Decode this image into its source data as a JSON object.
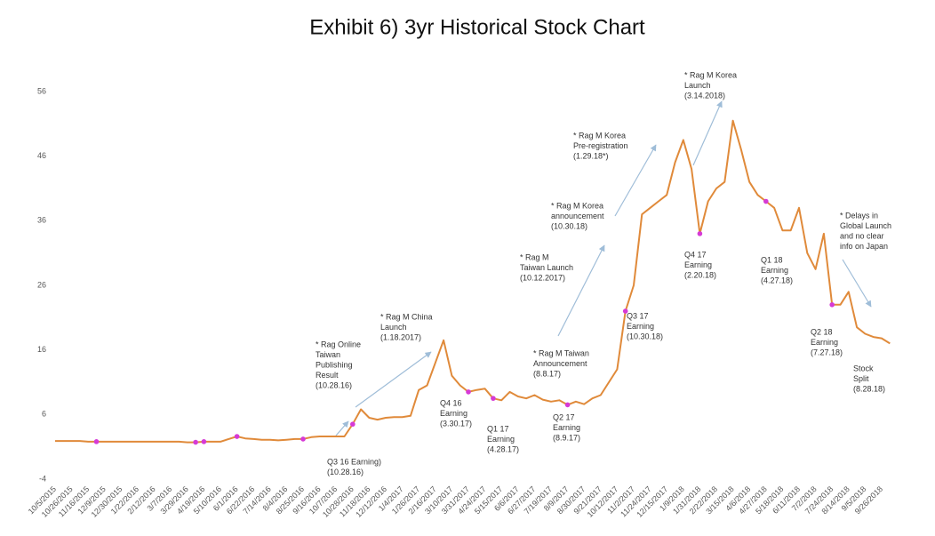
{
  "chart_data": {
    "type": "line",
    "title": "Exhibit 6) 3yr Historical Stock Chart",
    "color": "#e08a3a",
    "categories": [
      "10/5/2015",
      null,
      "10/26/2015",
      null,
      "11/16/2015",
      null,
      "12/9/2015",
      null,
      "12/30/2015",
      null,
      "1/22/2016",
      null,
      "2/12/2016",
      null,
      "3/7/2016",
      null,
      "3/29/2016",
      null,
      "4/19/2016",
      null,
      "5/10/2016",
      null,
      "6/1/2016",
      null,
      "6/22/2016",
      null,
      "7/14/2016",
      null,
      "8/4/2016",
      null,
      "8/25/2016",
      null,
      "9/16/2016",
      null,
      "10/7/2016",
      null,
      "10/28/2016",
      null,
      "11/18/2016",
      null,
      "12/12/2016",
      null,
      "1/4/2017",
      null,
      "1/26/2017",
      null,
      "2/16/2017",
      null,
      "3/10/2017",
      null,
      "3/31/2017",
      null,
      "4/24/2017",
      null,
      "5/15/2017",
      null,
      "6/6/2017",
      null,
      "6/27/2017",
      null,
      "7/19/2017",
      null,
      "8/9/2017",
      null,
      "8/30/2017",
      null,
      "9/21/2017",
      null,
      "10/12/2017",
      null,
      "11/2/2017",
      null,
      "11/24/2017",
      null,
      "12/15/2017",
      null,
      "1/9/2018",
      null,
      "1/31/2018",
      null,
      "2/22/2018",
      null,
      "3/15/2018",
      null,
      "4/6/2018",
      null,
      "4/27/2018",
      null,
      "5/18/2018",
      null,
      "6/11/2018",
      null,
      "7/2/2018",
      null,
      "7/24/2018",
      null,
      "8/14/2018",
      null,
      "9/5/2018",
      null,
      "9/26/2018",
      null
    ],
    "values": [
      1.9,
      1.9,
      1.9,
      1.9,
      1.8,
      1.8,
      1.8,
      1.8,
      1.8,
      1.8,
      1.8,
      1.8,
      1.8,
      1.8,
      1.8,
      1.8,
      1.7,
      1.7,
      1.8,
      1.8,
      1.8,
      2.2,
      2.6,
      2.3,
      2.2,
      2.1,
      2.1,
      2.0,
      2.1,
      2.2,
      2.2,
      2.5,
      2.6,
      2.6,
      2.6,
      2.6,
      4.5,
      6.8,
      5.5,
      5.2,
      5.5,
      5.6,
      5.6,
      5.8,
      9.8,
      10.5,
      14,
      17.5,
      12,
      10.5,
      9.5,
      9.8,
      10,
      8.5,
      8.2,
      9.5,
      8.8,
      8.5,
      9.0,
      8.3,
      8.0,
      8.2,
      7.5,
      8.0,
      7.6,
      8.5,
      9.0,
      11,
      13,
      22,
      26,
      37,
      38,
      39,
      40,
      45,
      48.5,
      44,
      34,
      39,
      41,
      42,
      51.5,
      47,
      42,
      40,
      39,
      38,
      34.5,
      34.5,
      38,
      31,
      28.5,
      34,
      23,
      23,
      25,
      19.5,
      18.5,
      18,
      17.8,
      17
    ],
    "ylim": [
      -4,
      56
    ],
    "yticks": [
      -4,
      6,
      16,
      26,
      36,
      46,
      56
    ],
    "annotations": [
      [
        "* Rag Online",
        "Taiwan",
        "Publishing",
        "Result",
        "(10.28.16)"
      ],
      [
        "Q3 16 Earning)",
        "(10.28.16)"
      ],
      [
        "* Rag M China",
        "Launch",
        "(1.18.2017)"
      ],
      [
        "Q4 16",
        "Earning",
        "(3.30.17)"
      ],
      [
        "Q1 17",
        "Earning",
        "(4.28.17)"
      ],
      [
        "* Rag M Taiwan",
        "Announcement",
        "(8.8.17)"
      ],
      [
        "Q2 17",
        "Earning",
        "(8.9.17)"
      ],
      [
        "* Rag M",
        "Taiwan Launch",
        "(10.12.2017)"
      ],
      [
        "* Rag M Korea",
        "announcement",
        "(10.30.18)"
      ],
      [
        "Q3 17",
        "Earning",
        "(10.30.18)"
      ],
      [
        "* Rag M Korea",
        "Pre-registration",
        "(1.29.18*)"
      ],
      [
        "* Rag M Korea",
        "Launch",
        "(3.14.2018)"
      ],
      [
        "Q4 17",
        "Earning",
        "(2.20.18)"
      ],
      [
        "Q1 18",
        "Earning",
        "(4.27.18)"
      ],
      [
        "Q2 18",
        "Earning",
        "(7.27.18)"
      ],
      [
        "Stock",
        "Split",
        "(8.28.18)"
      ],
      [
        "* Delays in",
        "Global Launch",
        "and no clear",
        "info on Japan"
      ]
    ]
  }
}
